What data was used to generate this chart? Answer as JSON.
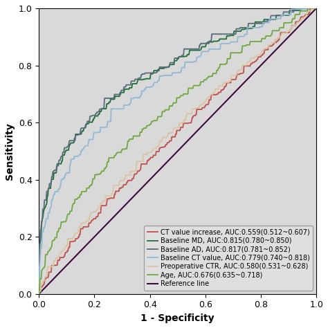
{
  "title": "",
  "xlabel": "1 - Specificity",
  "ylabel": "Sensitivity",
  "xlim": [
    0.0,
    1.0
  ],
  "ylim": [
    0.0,
    1.0
  ],
  "xticks": [
    0.0,
    0.2,
    0.4,
    0.6,
    0.8,
    1.0
  ],
  "yticks": [
    0.0,
    0.2,
    0.4,
    0.6,
    0.8,
    1.0
  ],
  "background_color": "#d9d9d9",
  "curves": [
    {
      "name": "CT value increase, AUC:0.559(0.512~0.607)",
      "color": "#c0504d",
      "auc": 0.559,
      "exp": 0.84,
      "noise_std": 0.01,
      "seed": 10
    },
    {
      "name": "Baseline MD, AUC:0.815(0.780~0.850)",
      "color": "#1f6e3a",
      "auc": 0.815,
      "exp": 0.31,
      "noise_std": 0.012,
      "seed": 20
    },
    {
      "name": "Baseline AD, AUC:0.817(0.781~0.852)",
      "color": "#596b7a",
      "auc": 0.817,
      "exp": 0.3,
      "noise_std": 0.012,
      "seed": 30
    },
    {
      "name": "Baseline CT value, AUC:0.779(0.740~0.818)",
      "color": "#92b8d4",
      "auc": 0.779,
      "exp": 0.38,
      "noise_std": 0.014,
      "seed": 40
    },
    {
      "name": "Preoperative CTR, AUC:0.580(0.531~0.628)",
      "color": "#d9c4a0",
      "auc": 0.58,
      "exp": 0.78,
      "noise_std": 0.008,
      "seed": 50
    },
    {
      "name": "Age, AUC:0.676(0.635~0.718)",
      "color": "#70a840",
      "auc": 0.676,
      "exp": 0.58,
      "noise_std": 0.01,
      "seed": 60
    }
  ],
  "ref_color": "#3d0a3d",
  "ref_name": "Reference line",
  "legend_fontsize": 7.0,
  "axis_fontsize": 10,
  "tick_fontsize": 9,
  "linewidth_main": 1.3,
  "linewidth_ref": 1.5,
  "n_points": 500
}
